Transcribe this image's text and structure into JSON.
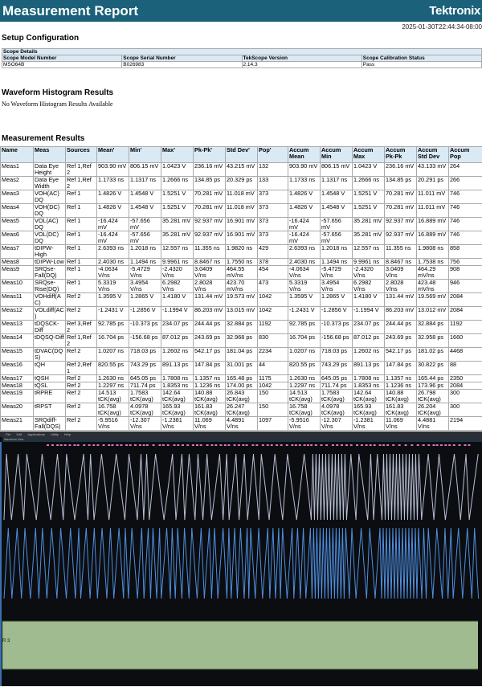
{
  "header": {
    "title": "Measurement Report",
    "brand": "Tektronix",
    "timestamp": "2025-01-30T22:44:34-08:00"
  },
  "setup": {
    "heading": "Setup Configuration",
    "table_title": "Scope Details",
    "columns": [
      "Scope Model Number",
      "Scope Serial Number",
      "TekScope Version",
      "Scope Calibration Status"
    ],
    "values": [
      "MSO64B",
      "B026983",
      "2.14.3",
      "Pass"
    ]
  },
  "histogram": {
    "heading": "Waveform Histogram Results",
    "message": "No Waveform Histogram Results Available"
  },
  "results": {
    "heading": "Measurement Results",
    "columns": [
      "Name",
      "Meas",
      "Sources",
      "Mean'",
      "Min'",
      "Max'",
      "Pk-Pk'",
      "Std Dev'",
      "Pop'",
      "Accum Mean",
      "Accum Min",
      "Accum Max",
      "Accum Pk-Pk",
      "Accum Std Dev",
      "Accum Pop"
    ],
    "rows": [
      [
        "Meas1",
        "Data Eye Height",
        "Ref 1,Ref 2",
        "903.90 mV",
        "806.15 mV",
        "1.0423 V",
        "236.16 mV",
        "43.215 mV",
        "132",
        "903.90 mV",
        "806.15 mV",
        "1.0423 V",
        "236.16 mV",
        "43.133 mV",
        "264"
      ],
      [
        "Meas2",
        "Data Eye Width",
        "Ref 1,Ref 2",
        "1.1733 ns",
        "1.1317 ns",
        "1.2666 ns",
        "134.85 ps",
        "20.329 ps",
        "133",
        "1.1733 ns",
        "1.1317 ns",
        "1.2666 ns",
        "134.85 ps",
        "20.291 ps",
        "266"
      ],
      [
        "Meas3",
        "VOH(AC) DQ",
        "Ref 1",
        "1.4826 V",
        "1.4548 V",
        "1.5251 V",
        "70.281 mV",
        "11.018 mV",
        "373",
        "1.4826 V",
        "1.4548 V",
        "1.5251 V",
        "70.281 mV",
        "11.011 mV",
        "746"
      ],
      [
        "Meas4",
        "VOH(DC) DQ",
        "Ref 1",
        "1.4826 V",
        "1.4548 V",
        "1.5251 V",
        "70.281 mV",
        "11.018 mV",
        "373",
        "1.4826 V",
        "1.4548 V",
        "1.5251 V",
        "70.281 mV",
        "11.011 mV",
        "746"
      ],
      [
        "Meas5",
        "VOL(AC) DQ",
        "Ref 1",
        "-16.424 mV",
        "-57.656 mV",
        "35.281 mV",
        "92.937 mV",
        "16.901 mV",
        "373",
        "-16.424 mV",
        "-57.656 mV",
        "35.281 mV",
        "92.937 mV",
        "16.889 mV",
        "746"
      ],
      [
        "Meas6",
        "VOL(DC) DQ",
        "Ref 1",
        "-16.424 mV",
        "-57.656 mV",
        "35.281 mV",
        "92.937 mV",
        "16.901 mV",
        "373",
        "-16.424 mV",
        "-57.656 mV",
        "35.281 mV",
        "92.937 mV",
        "16.889 mV",
        "746"
      ],
      [
        "Meas7",
        "tDIPW-High",
        "Ref 1",
        "2.6393 ns",
        "1.2018 ns",
        "12.557 ns",
        "11.355 ns",
        "1.9820 ns",
        "429",
        "2.6393 ns",
        "1.2018 ns",
        "12.557 ns",
        "11.355 ns",
        "1.9808 ns",
        "858"
      ],
      [
        "Meas8",
        "tDIPW-Low",
        "Ref 1",
        "2.4030 ns",
        "1.1494 ns",
        "9.9961 ns",
        "8.8467 ns",
        "1.7550 ns",
        "378",
        "2.4030 ns",
        "1.1494 ns",
        "9.9961 ns",
        "8.8467 ns",
        "1.7538 ns",
        "756"
      ],
      [
        "Meas9",
        "SRQse-Fall(DQ)",
        "Ref 1",
        "-4.0634 V/ns",
        "-5.4729 V/ns",
        "-2.4320 V/ns",
        "3.0409 V/ns",
        "464.55 mV/ns",
        "454",
        "-4.0634 V/ns",
        "-5.4729 V/ns",
        "-2.4320 V/ns",
        "3.0409 V/ns",
        "464.29 mV/ns",
        "908"
      ],
      [
        "Meas10",
        "SRQse-Rise(DQ)",
        "Ref 1",
        "5.3319 V/ns",
        "3.4954 V/ns",
        "6.2982 V/ns",
        "2.8028 V/ns",
        "423.70 mV/ns",
        "473",
        "5.3319 V/ns",
        "3.4954 V/ns",
        "6.2982 V/ns",
        "2.8028 V/ns",
        "423.48 mV/ns",
        "946"
      ],
      [
        "Meas11",
        "VOHdiff(AC)",
        "Ref 2",
        "1.3595 V",
        "1.2865 V",
        "1.4180 V",
        "131.44 mV",
        "19.573 mV",
        "1042",
        "1.3595 V",
        "1.2865 V",
        "1.4180 V",
        "131.44 mV",
        "19.569 mV",
        "2084"
      ],
      [
        "Meas12",
        "VOLdiff(AC)",
        "Ref 2",
        "-1.2431 V",
        "-1.2856 V",
        "-1.1994 V",
        "86.203 mV",
        "13.015 mV",
        "1042",
        "-1.2431 V",
        "-1.2856 V",
        "-1.1994 V",
        "86.203 mV",
        "13.012 mV",
        "2084"
      ],
      [
        "Meas13",
        "tDQSCK-Diff",
        "Ref 3,Ref 2",
        "92.785 ps",
        "-10.373 ps",
        "234.07 ps",
        "244.44 ps",
        "32.884 ps",
        "1192",
        "92.785 ps",
        "-10.373 ps",
        "234.07 ps",
        "244.44 ps",
        "32.884 ps",
        "1192"
      ],
      [
        "Meas14",
        "tDQSQ-Diff",
        "Ref 1,Ref 2",
        "16.704 ps",
        "-156.68 ps",
        "87.012 ps",
        "243.69 ps",
        "32.968 ps",
        "830",
        "16.704 ps",
        "-156.68 ps",
        "87.012 ps",
        "243.69 ps",
        "32.958 ps",
        "1660"
      ],
      [
        "Meas15",
        "tDVAC(DQS)",
        "Ref 2",
        "1.0207 ns",
        "718.03 ps",
        "1.2602 ns",
        "542.17 ps",
        "181.04 ps",
        "2234",
        "1.0207 ns",
        "718.03 ps",
        "1.2602 ns",
        "542.17 ps",
        "181.02 ps",
        "4468"
      ],
      [
        "Meas16",
        "tQH",
        "Ref 2,Ref 1",
        "820.55 ps",
        "743.29 ps",
        "891.13 ps",
        "147.84 ps",
        "31.001 ps",
        "44",
        "820.55 ps",
        "743.29 ps",
        "891.13 ps",
        "147.84 ps",
        "30.822 ps",
        "88"
      ],
      [
        "Meas17",
        "tQSH",
        "Ref 2",
        "1.2630 ns",
        "645.05 ps",
        "1.7808 ns",
        "1.1357 ns",
        "165.48 ps",
        "1175",
        "1.2630 ns",
        "645.05 ps",
        "1.7808 ns",
        "1.1357 ns",
        "165.44 ps",
        "2350"
      ],
      [
        "Meas18",
        "tQSL",
        "Ref 2",
        "1.2297 ns",
        "711.74 ps",
        "1.8353 ns",
        "1.1236 ns",
        "174.00 ps",
        "1042",
        "1.2297 ns",
        "711.74 ps",
        "1.8353 ns",
        "1.1236 ns",
        "173.96 ps",
        "2084"
      ],
      [
        "Meas19",
        "tRPRE",
        "Ref 2",
        "14.513 tCK(avg)",
        "1.7583 tCK(avg)",
        "142.64 tCK(avg)",
        "140.88 tCK(avg)",
        "26.843 tCK(avg)",
        "150",
        "14.513 tCK(avg)",
        "1.7583 tCK(avg)",
        "142.64 tCK(avg)",
        "140.88 tCK(avg)",
        "26.798 tCK(avg)",
        "300"
      ],
      [
        "Meas20",
        "tRPST",
        "Ref 2",
        "16.758 tCK(avg)",
        "4.0978 tCK(avg)",
        "165.93 tCK(avg)",
        "161.83 tCK(avg)",
        "26.247 tCK(avg)",
        "150",
        "16.758 tCK(avg)",
        "4.0978 tCK(avg)",
        "165.93 tCK(avg)",
        "161.83 tCK(avg)",
        "26.204 tCK(avg)",
        "300"
      ],
      [
        "Meas21",
        "SRQdiff-Fall(DQS)",
        "Ref 2",
        "-5.9516 V/ns",
        "-12.307 V/ns",
        "-1.2381 V/ns",
        "11.069 V/ns",
        "4.4891 V/ns",
        "1097",
        "-5.9516 V/ns",
        "-12.307 V/ns",
        "-1.2381 V/ns",
        "11.069 V/ns",
        "4.4881 V/ns",
        "2194"
      ]
    ]
  },
  "screenshot": {
    "menu": [
      "File",
      "Edit",
      "Applications",
      "Utility",
      "Help"
    ],
    "view_title": "Waveform View",
    "ref_label": "R 3",
    "colors": {
      "ch1": "#b9c0d6",
      "ch2": "#4f8fe0",
      "ref3": "#9fbb8f",
      "marker": "#e070c0"
    }
  }
}
